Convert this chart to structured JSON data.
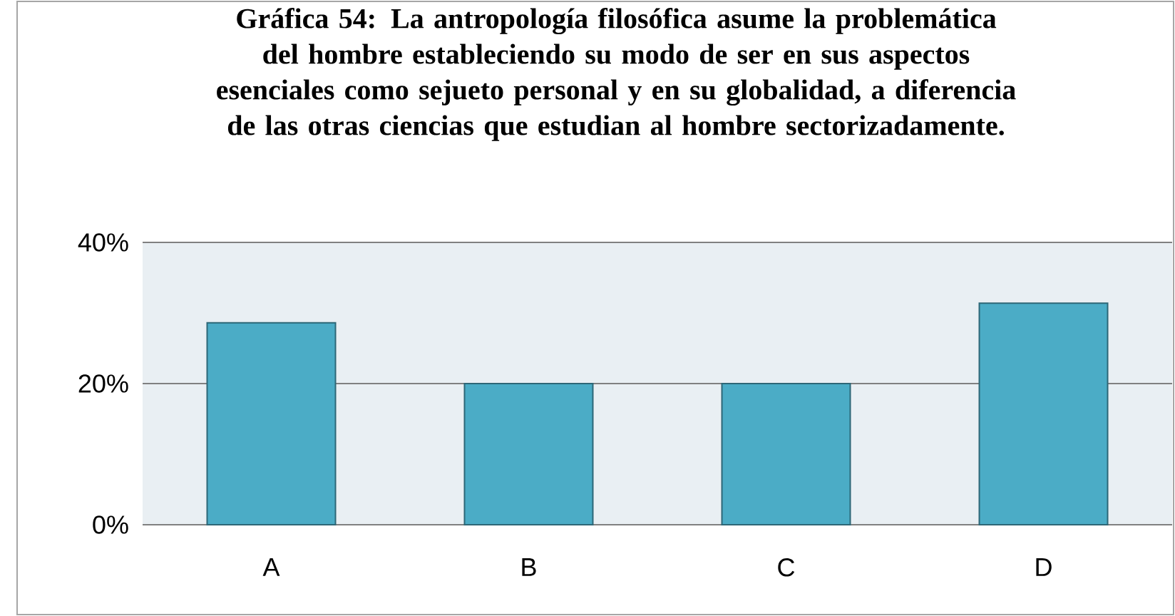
{
  "chart_data": {
    "type": "bar",
    "title": "Gráfica 54: La antropología filosófica asume la problemática del hombre estableciendo su modo de ser en sus aspectos esenciales como sejueto personal y en su globalidad, a diferencia de las otras ciencias que estudian al hombre sectorizadamente.",
    "categories": [
      "A",
      "B",
      "C",
      "D"
    ],
    "values": [
      28.6,
      20,
      20,
      31.4
    ],
    "color": "#4bacc6",
    "ylim": [
      0,
      40
    ],
    "yticks": [
      {
        "value": 0,
        "label": "0%"
      },
      {
        "value": 20,
        "label": "20%"
      },
      {
        "value": 40,
        "label": "40%"
      }
    ],
    "grid": "y"
  }
}
